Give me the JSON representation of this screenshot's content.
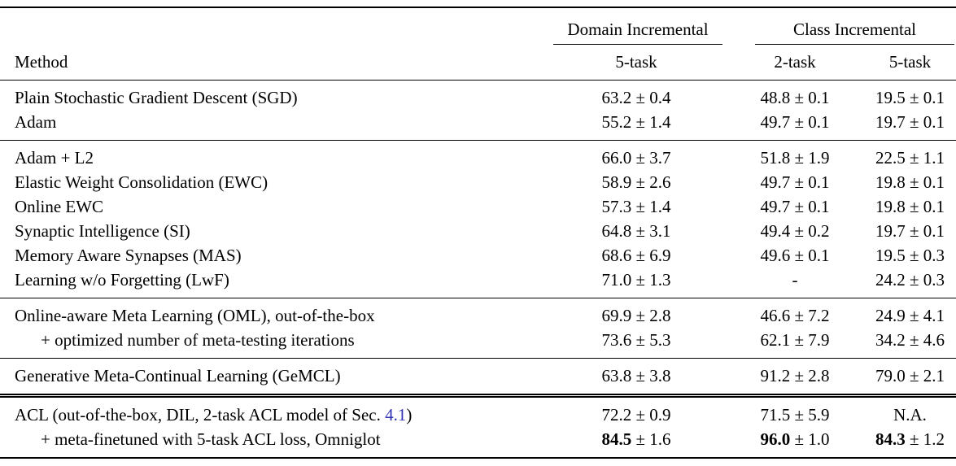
{
  "meta": {
    "background_color": "#ffffff",
    "text_color": "#000000",
    "link_color": "#3232b4"
  },
  "header": {
    "method_label": "Method",
    "groups": [
      {
        "label": "Domain Incremental",
        "cols": [
          "5-task"
        ]
      },
      {
        "label": "Class Incremental",
        "cols": [
          "2-task",
          "5-task"
        ]
      }
    ]
  },
  "sections": [
    {
      "rows": [
        {
          "method": "Plain Stochastic Gradient Descent (SGD)",
          "cells": [
            {
              "value": "63.2",
              "pm": "0.4"
            },
            {
              "value": "48.8",
              "pm": "0.1"
            },
            {
              "value": "19.5",
              "pm": "0.1"
            }
          ]
        },
        {
          "method": "Adam",
          "cells": [
            {
              "value": "55.2",
              "pm": "1.4"
            },
            {
              "value": "49.7",
              "pm": "0.1"
            },
            {
              "value": "19.7",
              "pm": "0.1"
            }
          ]
        }
      ]
    },
    {
      "rows": [
        {
          "method": "Adam + L2",
          "cells": [
            {
              "value": "66.0",
              "pm": "3.7"
            },
            {
              "value": "51.8",
              "pm": "1.9"
            },
            {
              "value": "22.5",
              "pm": "1.1"
            }
          ]
        },
        {
          "method": "Elastic Weight Consolidation (EWC)",
          "cells": [
            {
              "value": "58.9",
              "pm": "2.6"
            },
            {
              "value": "49.7",
              "pm": "0.1"
            },
            {
              "value": "19.8",
              "pm": "0.1"
            }
          ]
        },
        {
          "method": "Online EWC",
          "cells": [
            {
              "value": "57.3",
              "pm": "1.4"
            },
            {
              "value": "49.7",
              "pm": "0.1"
            },
            {
              "value": "19.8",
              "pm": "0.1"
            }
          ]
        },
        {
          "method": "Synaptic Intelligence (SI)",
          "cells": [
            {
              "value": "64.8",
              "pm": "3.1"
            },
            {
              "value": "49.4",
              "pm": "0.2"
            },
            {
              "value": "19.7",
              "pm": "0.1"
            }
          ]
        },
        {
          "method": "Memory Aware Synapses (MAS)",
          "cells": [
            {
              "value": "68.6",
              "pm": "6.9"
            },
            {
              "value": "49.6",
              "pm": "0.1"
            },
            {
              "value": "19.5",
              "pm": "0.3"
            }
          ]
        },
        {
          "method": "Learning w/o Forgetting (LwF)",
          "cells": [
            {
              "value": "71.0",
              "pm": "1.3"
            },
            {
              "value": "-"
            },
            {
              "value": "24.2",
              "pm": "0.3"
            }
          ]
        }
      ]
    },
    {
      "rows": [
        {
          "method": "Online-aware Meta Learning (OML), out-of-the-box",
          "cells": [
            {
              "value": "69.9",
              "pm": "2.8"
            },
            {
              "value": "46.6",
              "pm": "7.2"
            },
            {
              "value": "24.9",
              "pm": "4.1"
            }
          ]
        },
        {
          "method": "+ optimized number of meta-testing iterations",
          "indent": true,
          "cells": [
            {
              "value": "73.6",
              "pm": "5.3"
            },
            {
              "value": "62.1",
              "pm": "7.9"
            },
            {
              "value": "34.2",
              "pm": "4.6"
            }
          ]
        }
      ]
    },
    {
      "rows": [
        {
          "method": "Generative Meta-Continual Learning (GeMCL)",
          "cells": [
            {
              "value": "63.8",
              "pm": "3.8"
            },
            {
              "value": "91.2",
              "pm": "2.8"
            },
            {
              "value": "79.0",
              "pm": "2.1"
            }
          ]
        }
      ]
    },
    {
      "double_rule": true,
      "rows": [
        {
          "method_prefix": "ACL (out-of-the-box, DIL, 2-task ACL model of Sec. ",
          "method_link": "4.1",
          "method_suffix": ")",
          "cells": [
            {
              "value": "72.2",
              "pm": "0.9"
            },
            {
              "value": "71.5",
              "pm": "5.9"
            },
            {
              "value": "N.A."
            }
          ]
        },
        {
          "method": "+ meta-finetuned with 5-task ACL loss, Omniglot",
          "indent": true,
          "cells": [
            {
              "value": "84.5",
              "pm": "1.6",
              "bold": true
            },
            {
              "value": "96.0",
              "pm": "1.0",
              "bold": true
            },
            {
              "value": "84.3",
              "pm": "1.2",
              "bold": true
            }
          ]
        }
      ]
    }
  ]
}
